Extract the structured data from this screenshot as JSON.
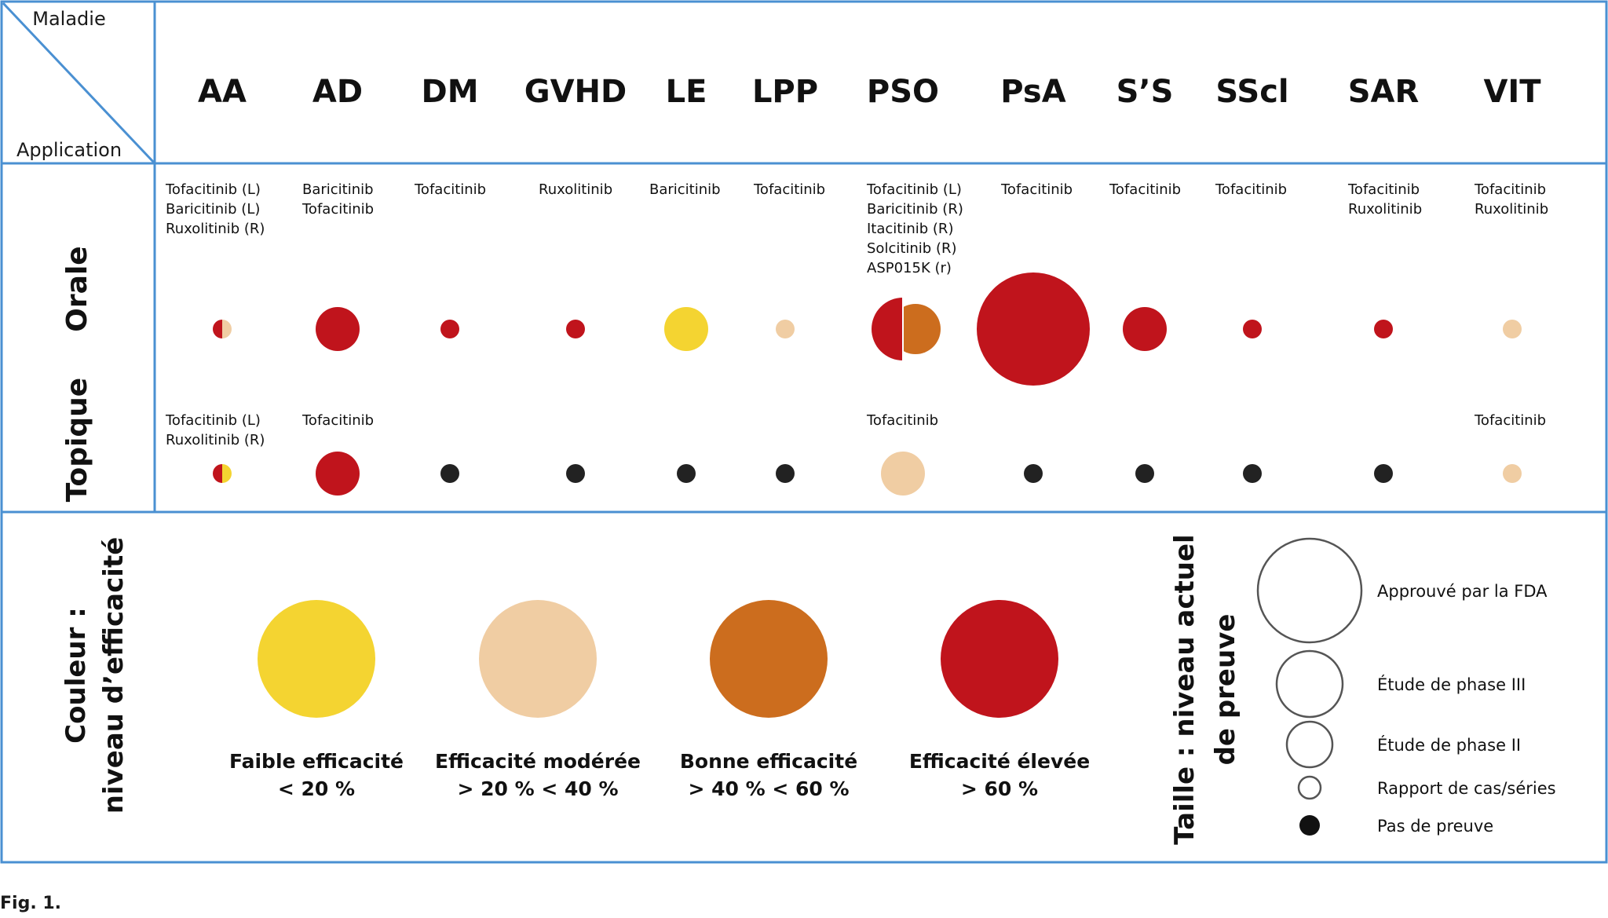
{
  "corner": {
    "top_label": "Maladie",
    "bottom_label": "Application"
  },
  "diseases": [
    "AA",
    "AD",
    "DM",
    "GVHD",
    "LE",
    "LPP",
    "PSO",
    "PsA",
    "S’S",
    "SScl",
    "SAR",
    "VIT"
  ],
  "rows": [
    {
      "label": "Orale",
      "drugs": [
        [
          "Tofacitinib (L)",
          "Baricitinib (L)",
          "Ruxolitinib (R)"
        ],
        [
          "Baricitinib",
          "Tofacitinib"
        ],
        [
          "Tofacitinib"
        ],
        [
          "Ruxolitinib"
        ],
        [
          "Baricitinib"
        ],
        [
          "Tofacitinib"
        ],
        [
          "Tofacitinib (L)",
          "Baricitinib (R)",
          "Itacitinib (R)",
          "Solcitinib (R)",
          "ASP015K (r)"
        ],
        [
          "Tofacitinib"
        ],
        [
          "Tofacitinib"
        ],
        [
          "Tofacitinib"
        ],
        [
          "Tofacitinib",
          "Ruxolitinib"
        ],
        [
          "Tofacitinib",
          "Ruxolitinib"
        ]
      ],
      "markers": [
        {
          "size": "case",
          "colors": [
            "high",
            "moderate"
          ],
          "split": "half"
        },
        {
          "size": "phase2",
          "colors": [
            "high"
          ]
        },
        {
          "size": "case",
          "colors": [
            "high"
          ]
        },
        {
          "size": "case",
          "colors": [
            "high"
          ]
        },
        {
          "size": "phase2",
          "colors": [
            "low"
          ]
        },
        {
          "size": "case",
          "colors": [
            "moderate"
          ]
        },
        {
          "size": "phase3",
          "colors": [
            "high",
            "good"
          ],
          "split": "offset"
        },
        {
          "size": "fda",
          "colors": [
            "high"
          ]
        },
        {
          "size": "phase2",
          "colors": [
            "high"
          ]
        },
        {
          "size": "case",
          "colors": [
            "high"
          ]
        },
        {
          "size": "case",
          "colors": [
            "high"
          ]
        },
        {
          "size": "case",
          "colors": [
            "moderate"
          ]
        }
      ]
    },
    {
      "label": "Topique",
      "drugs": [
        [
          "Tofacitinib (L)",
          "Ruxolitinib (R)"
        ],
        [
          "Tofacitinib"
        ],
        [],
        [],
        [],
        [],
        [
          "Tofacitinib"
        ],
        [],
        [],
        [],
        [],
        [
          "Tofacitinib"
        ]
      ],
      "markers": [
        {
          "size": "case",
          "colors": [
            "high",
            "low"
          ],
          "split": "half"
        },
        {
          "size": "phase2",
          "colors": [
            "high"
          ]
        },
        {
          "size": "none",
          "colors": [
            "none"
          ]
        },
        {
          "size": "none",
          "colors": [
            "none"
          ]
        },
        {
          "size": "none",
          "colors": [
            "none"
          ]
        },
        {
          "size": "none",
          "colors": [
            "none"
          ]
        },
        {
          "size": "phase2",
          "colors": [
            "moderate"
          ]
        },
        {
          "size": "none",
          "colors": [
            "none"
          ]
        },
        {
          "size": "none",
          "colors": [
            "none"
          ]
        },
        {
          "size": "none",
          "colors": [
            "none"
          ]
        },
        {
          "size": "none",
          "colors": [
            "none"
          ]
        },
        {
          "size": "case",
          "colors": [
            "moderate"
          ]
        }
      ]
    }
  ],
  "color_legend": {
    "title_line1": "Couleur :",
    "title_line2": "niveau d’efficacité",
    "items": [
      {
        "key": "low",
        "line1": "Faible efficacité",
        "line2": "< 20 %"
      },
      {
        "key": "moderate",
        "line1": "Efficacité modérée",
        "line2": "> 20 % < 40 %"
      },
      {
        "key": "good",
        "line1": "Bonne efficacité",
        "line2": "> 40 % < 60 %"
      },
      {
        "key": "high",
        "line1": "Efficacité élevée",
        "line2": "> 60 %"
      }
    ]
  },
  "size_legend": {
    "title_line1": "Taille : niveau actuel",
    "title_line2": "de preuve",
    "items": [
      {
        "key": "fda",
        "label": "Approuvé par la FDA"
      },
      {
        "key": "phase3",
        "label": "Étude de phase III"
      },
      {
        "key": "phase2",
        "label": "Étude de phase II"
      },
      {
        "key": "case",
        "label": "Rapport de cas/séries"
      },
      {
        "key": "none",
        "label": "Pas de preuve"
      }
    ]
  },
  "colors": {
    "low": "#f4d431",
    "moderate": "#f0cda3",
    "good": "#cc6d1e",
    "high": "#c0141c",
    "none": "#222222",
    "border": "#4a90d2"
  },
  "caption": "Fig. 1."
}
